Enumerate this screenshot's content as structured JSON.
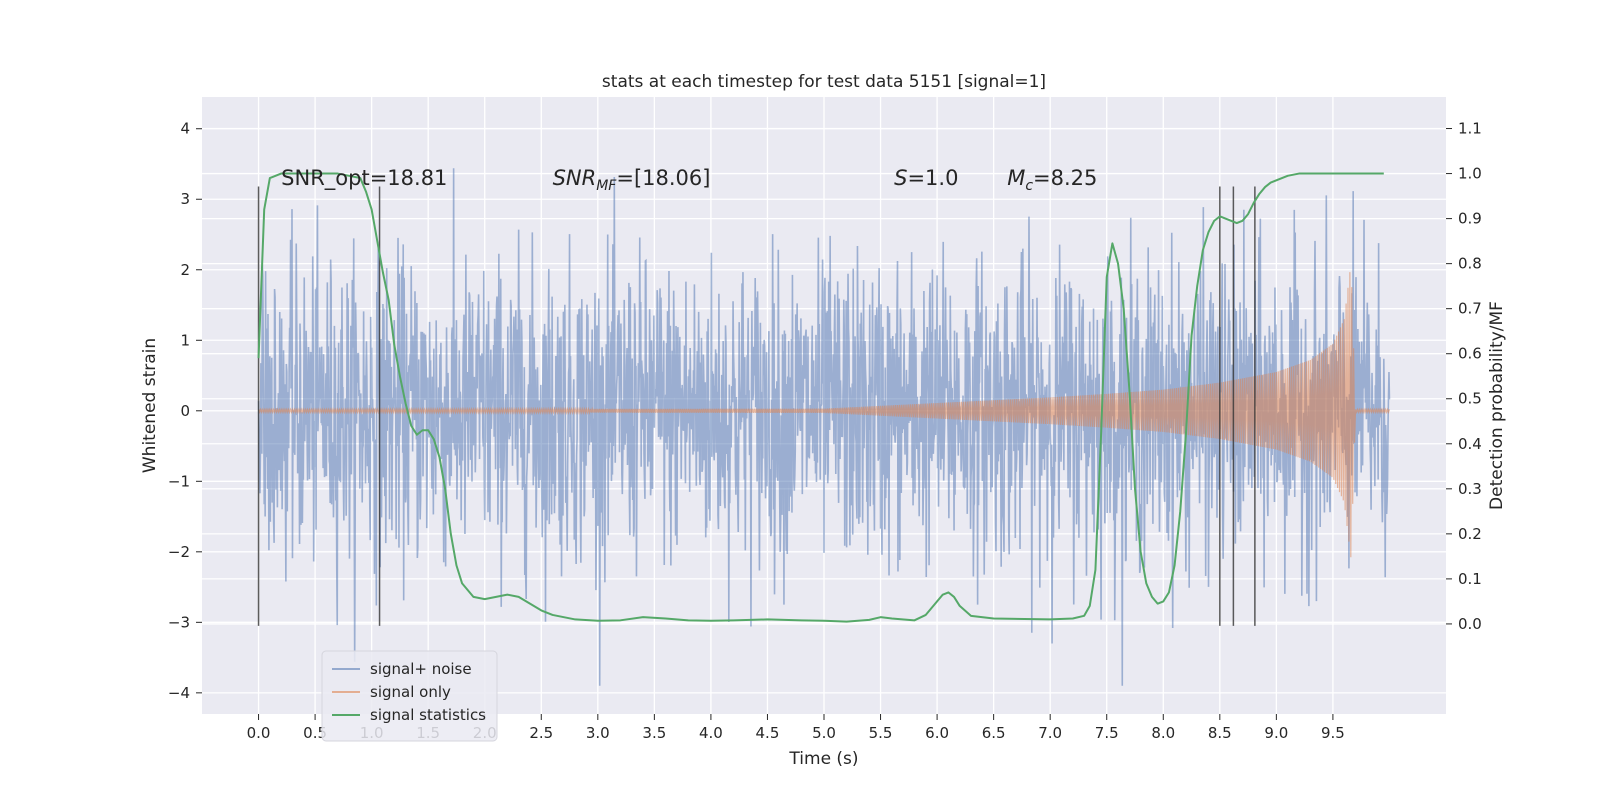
{
  "chart_data": {
    "type": "line",
    "title": "stats at each timestep for test data 5151 [signal=1]",
    "xlabel": "Time (s)",
    "ylabel": "Whitened strain",
    "ylabel_right": "Detection probability/MF",
    "xlim": [
      -0.5,
      10.5
    ],
    "ylim": [
      -4.3,
      4.45
    ],
    "ylim_right": [
      -0.2,
      1.17
    ],
    "x_ticks": [
      0.0,
      0.5,
      1.0,
      1.5,
      2.0,
      2.5,
      3.0,
      3.5,
      4.0,
      4.5,
      5.0,
      5.5,
      6.0,
      6.5,
      7.0,
      7.5,
      8.0,
      8.5,
      9.0,
      9.5
    ],
    "x_tick_labels": [
      "0.0",
      "0.5",
      "1.0",
      "1.5",
      "2.0",
      "2.5",
      "3.0",
      "3.5",
      "4.0",
      "4.5",
      "5.0",
      "5.5",
      "6.0",
      "6.5",
      "7.0",
      "7.5",
      "8.0",
      "8.5",
      "9.0",
      "9.5"
    ],
    "y_ticks": [
      -4,
      -3,
      -2,
      -1,
      0,
      1,
      2,
      3,
      4
    ],
    "y_tick_labels": [
      "−4",
      "−3",
      "−2",
      "−1",
      "0",
      "1",
      "2",
      "3",
      "4"
    ],
    "y_right_ticks": [
      0.0,
      0.1,
      0.2,
      0.3,
      0.4,
      0.5,
      0.6,
      0.7,
      0.8,
      0.9,
      1.0,
      1.1
    ],
    "y_right_tick_labels": [
      "0.0",
      "0.1",
      "0.2",
      "0.3",
      "0.4",
      "0.5",
      "0.6",
      "0.7",
      "0.8",
      "0.9",
      "1.0",
      "1.1"
    ],
    "grid": true,
    "legend_position": "lower-left",
    "annotations": [
      {
        "x": 0.2,
        "y": 3.2,
        "parts": [
          {
            "t": "SNR_opt=18.81",
            "s": "normal"
          }
        ]
      },
      {
        "x": 2.6,
        "y": 3.2,
        "parts": [
          {
            "t": "SNR",
            "s": "italic"
          },
          {
            "t": "MF",
            "s": "italic-sub"
          },
          {
            "t": "=[18.06]",
            "s": "normal"
          }
        ]
      },
      {
        "x": 5.62,
        "y": 3.2,
        "parts": [
          {
            "t": "S",
            "s": "italic"
          },
          {
            "t": "=1.0",
            "s": "normal"
          }
        ]
      },
      {
        "x": 6.62,
        "y": 3.2,
        "parts": [
          {
            "t": "M",
            "s": "italic"
          },
          {
            "t": "c",
            "s": "italic-sub"
          },
          {
            "t": "=8.25",
            "s": "normal"
          }
        ]
      }
    ],
    "vertical_lines": {
      "x": [
        0.0,
        1.07,
        8.5,
        8.62,
        8.81
      ],
      "y_from": -3.05,
      "y_to": 3.18,
      "color": "#333333"
    },
    "series": [
      {
        "name": "signal+ noise",
        "color": "#4c72b0",
        "x_range": [
          0.0,
          10.0
        ],
        "envelope": {
          "mean": 0.0,
          "std": 1.05,
          "min": -3.9,
          "max": 4.05
        }
      },
      {
        "name": "signal only",
        "color": "#dd8452",
        "chirp_envelope": {
          "x": [
            0.0,
            5.0,
            5.5,
            6.0,
            6.5,
            7.0,
            7.5,
            8.0,
            8.5,
            9.0,
            9.3,
            9.5,
            9.6,
            9.66,
            9.7,
            10.0
          ],
          "amplitude": [
            0.02,
            0.03,
            0.07,
            0.11,
            0.15,
            0.19,
            0.24,
            0.3,
            0.4,
            0.55,
            0.72,
            0.95,
            1.3,
            2.1,
            0.02,
            0.02
          ]
        }
      },
      {
        "name": "signal statistics",
        "color": "#55a868",
        "axis": "right",
        "x": [
          0.0,
          0.05,
          0.1,
          0.15,
          0.2,
          0.3,
          0.5,
          0.7,
          0.8,
          0.9,
          0.95,
          1.0,
          1.05,
          1.1,
          1.15,
          1.2,
          1.25,
          1.3,
          1.35,
          1.4,
          1.45,
          1.5,
          1.55,
          1.6,
          1.65,
          1.7,
          1.75,
          1.8,
          1.9,
          2.0,
          2.1,
          2.2,
          2.3,
          2.4,
          2.5,
          2.6,
          2.8,
          3.0,
          3.2,
          3.4,
          3.6,
          3.8,
          4.0,
          4.2,
          4.5,
          4.8,
          5.0,
          5.2,
          5.4,
          5.5,
          5.6,
          5.8,
          5.9,
          6.0,
          6.05,
          6.1,
          6.15,
          6.2,
          6.3,
          6.5,
          7.0,
          7.2,
          7.3,
          7.35,
          7.4,
          7.45,
          7.5,
          7.55,
          7.6,
          7.65,
          7.7,
          7.75,
          7.8,
          7.85,
          7.9,
          7.95,
          8.0,
          8.05,
          8.1,
          8.15,
          8.2,
          8.25,
          8.3,
          8.35,
          8.4,
          8.45,
          8.5,
          8.55,
          8.6,
          8.65,
          8.7,
          8.75,
          8.8,
          8.85,
          8.9,
          8.95,
          9.0,
          9.05,
          9.1,
          9.2,
          9.3,
          9.5,
          9.7,
          9.9,
          9.95
        ],
        "y": [
          0.59,
          0.92,
          0.99,
          0.995,
          1.0,
          1.0,
          1.0,
          1.0,
          0.995,
          0.99,
          0.96,
          0.92,
          0.85,
          0.78,
          0.72,
          0.62,
          0.55,
          0.49,
          0.44,
          0.42,
          0.43,
          0.43,
          0.41,
          0.37,
          0.3,
          0.2,
          0.13,
          0.09,
          0.06,
          0.055,
          0.06,
          0.065,
          0.06,
          0.045,
          0.03,
          0.02,
          0.01,
          0.007,
          0.008,
          0.015,
          0.012,
          0.008,
          0.007,
          0.008,
          0.01,
          0.008,
          0.007,
          0.005,
          0.009,
          0.015,
          0.012,
          0.008,
          0.02,
          0.05,
          0.065,
          0.07,
          0.06,
          0.04,
          0.018,
          0.012,
          0.01,
          0.012,
          0.018,
          0.04,
          0.12,
          0.42,
          0.77,
          0.845,
          0.8,
          0.7,
          0.52,
          0.3,
          0.16,
          0.09,
          0.06,
          0.045,
          0.05,
          0.07,
          0.13,
          0.25,
          0.42,
          0.64,
          0.75,
          0.83,
          0.87,
          0.895,
          0.905,
          0.9,
          0.895,
          0.89,
          0.895,
          0.91,
          0.935,
          0.955,
          0.97,
          0.98,
          0.985,
          0.99,
          0.995,
          1.0,
          1.0,
          1.0,
          1.0,
          1.0,
          1.0
        ]
      }
    ]
  }
}
